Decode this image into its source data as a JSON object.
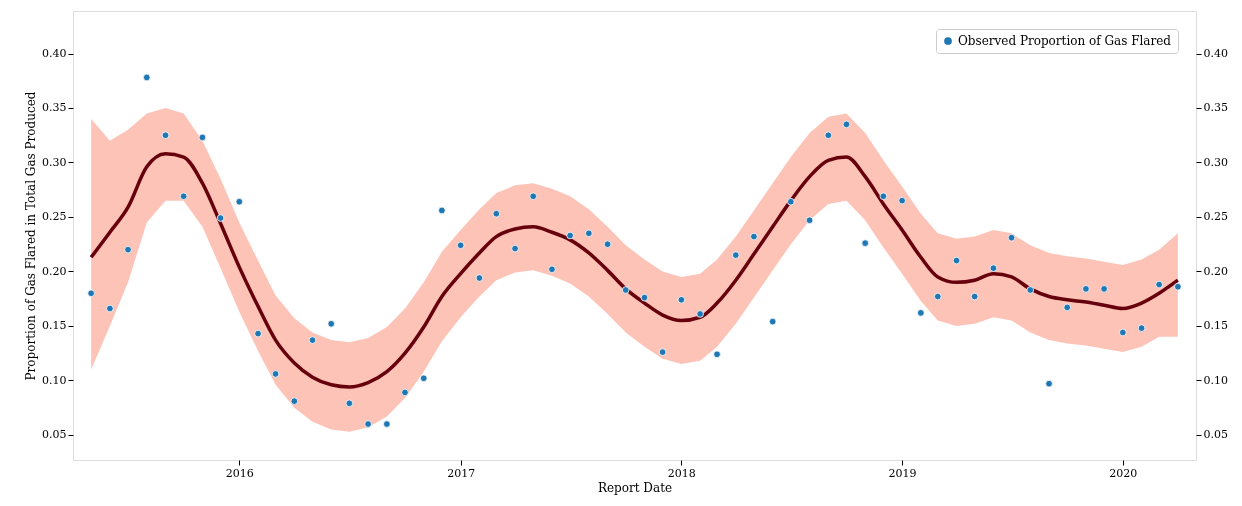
{
  "chart_data": {
    "type": "scatter",
    "xlabel": "Report Date",
    "ylabel": "Proportion of Gas Flared in Total Gas Produced",
    "x": [
      "2015-05",
      "2015-06",
      "2015-07",
      "2015-08",
      "2015-09",
      "2015-10",
      "2015-11",
      "2015-12",
      "2016-01",
      "2016-02",
      "2016-03",
      "2016-04",
      "2016-05",
      "2016-06",
      "2016-07",
      "2016-08",
      "2016-09",
      "2016-10",
      "2016-11",
      "2016-12",
      "2017-01",
      "2017-02",
      "2017-03",
      "2017-04",
      "2017-05",
      "2017-06",
      "2017-07",
      "2017-08",
      "2017-09",
      "2017-10",
      "2017-11",
      "2017-12",
      "2018-01",
      "2018-02",
      "2018-03",
      "2018-04",
      "2018-05",
      "2018-06",
      "2018-07",
      "2018-08",
      "2018-09",
      "2018-10",
      "2018-11",
      "2018-12",
      "2019-01",
      "2019-02",
      "2019-03",
      "2019-04",
      "2019-05",
      "2019-06",
      "2019-07",
      "2019-08",
      "2019-09",
      "2019-10",
      "2019-11",
      "2019-12",
      "2020-01",
      "2020-02",
      "2020-03",
      "2020-04"
    ],
    "series": [
      {
        "type": "line",
        "color": "#67000d",
        "values": [
          0.213,
          0.236,
          0.259,
          0.296,
          0.308,
          0.305,
          0.281,
          0.244,
          0.204,
          0.168,
          0.137,
          0.116,
          0.103,
          0.096,
          0.094,
          0.098,
          0.108,
          0.125,
          0.149,
          0.177,
          0.198,
          0.217,
          0.232,
          0.239,
          0.241,
          0.236,
          0.229,
          0.217,
          0.201,
          0.184,
          0.171,
          0.16,
          0.155,
          0.158,
          0.171,
          0.192,
          0.216,
          0.241,
          0.265,
          0.287,
          0.302,
          0.305,
          0.287,
          0.262,
          0.238,
          0.213,
          0.195,
          0.19,
          0.192,
          0.198,
          0.195,
          0.184,
          0.177,
          0.174,
          0.172,
          0.169,
          0.166,
          0.171,
          0.18,
          0.192
        ],
        "upper": [
          0.34,
          0.32,
          0.33,
          0.345,
          0.35,
          0.345,
          0.32,
          0.285,
          0.245,
          0.21,
          0.178,
          0.157,
          0.144,
          0.137,
          0.135,
          0.139,
          0.149,
          0.166,
          0.19,
          0.218,
          0.238,
          0.257,
          0.272,
          0.279,
          0.281,
          0.276,
          0.269,
          0.257,
          0.241,
          0.224,
          0.211,
          0.2,
          0.195,
          0.198,
          0.211,
          0.232,
          0.256,
          0.281,
          0.305,
          0.327,
          0.342,
          0.345,
          0.327,
          0.302,
          0.278,
          0.253,
          0.235,
          0.23,
          0.232,
          0.238,
          0.235,
          0.224,
          0.217,
          0.214,
          0.212,
          0.209,
          0.206,
          0.211,
          0.22,
          0.235
        ],
        "lower": [
          0.11,
          0.15,
          0.19,
          0.245,
          0.265,
          0.265,
          0.241,
          0.203,
          0.163,
          0.127,
          0.096,
          0.075,
          0.062,
          0.055,
          0.053,
          0.057,
          0.067,
          0.084,
          0.108,
          0.136,
          0.158,
          0.177,
          0.192,
          0.199,
          0.201,
          0.196,
          0.189,
          0.177,
          0.161,
          0.144,
          0.131,
          0.12,
          0.115,
          0.118,
          0.131,
          0.152,
          0.176,
          0.201,
          0.225,
          0.247,
          0.262,
          0.265,
          0.247,
          0.222,
          0.198,
          0.173,
          0.155,
          0.15,
          0.152,
          0.158,
          0.155,
          0.144,
          0.137,
          0.134,
          0.132,
          0.129,
          0.126,
          0.131,
          0.14,
          0.14
        ]
      },
      {
        "name": "Observed Proportion of Gas Flared",
        "marker": "circle",
        "color": "#1f77b4",
        "values": [
          0.18,
          0.166,
          0.22,
          0.378,
          0.325,
          0.269,
          0.323,
          0.249,
          0.264,
          0.143,
          0.106,
          0.081,
          0.137,
          0.152,
          0.079,
          0.06,
          0.06,
          0.089,
          0.102,
          0.256,
          0.224,
          0.194,
          0.253,
          0.221,
          0.269,
          0.202,
          0.233,
          0.235,
          0.225,
          0.183,
          0.176,
          0.126,
          0.174,
          0.161,
          0.124,
          0.215,
          0.232,
          0.154,
          0.264,
          0.247,
          0.325,
          0.335,
          0.226,
          0.269,
          0.265,
          0.162,
          0.177,
          0.21,
          0.177,
          0.203,
          0.231,
          0.183,
          0.097,
          0.167,
          0.184,
          0.184,
          0.144,
          0.148,
          0.188,
          0.186
        ]
      }
    ],
    "xlim": [
      "2015-04-01",
      "2020-05-01"
    ],
    "xticks": [
      "2016",
      "2017",
      "2018",
      "2019",
      "2020"
    ],
    "ylim": [
      0.027,
      0.439
    ],
    "yticks": [
      0.05,
      {
        "value": 0.1,
        "label": "0.10"
      },
      0.15,
      {
        "value": 0.2,
        "label": "0.20"
      },
      0.25,
      {
        "value": 0.3,
        "label": "0.30"
      },
      0.35,
      {
        "value": 0.4,
        "label": "0.40"
      }
    ],
    "y2lim": [
      0.027,
      0.439
    ],
    "y2ticks": [
      0.05,
      {
        "value": 0.1,
        "label": "0.10"
      },
      0.15,
      {
        "value": 0.2,
        "label": "0.20"
      },
      0.25,
      {
        "value": 0.3,
        "label": "0.30"
      },
      0.35,
      {
        "value": 0.4,
        "label": "0.40"
      }
    ],
    "grid": false,
    "legend": "top right",
    "line_style": "solid"
  }
}
